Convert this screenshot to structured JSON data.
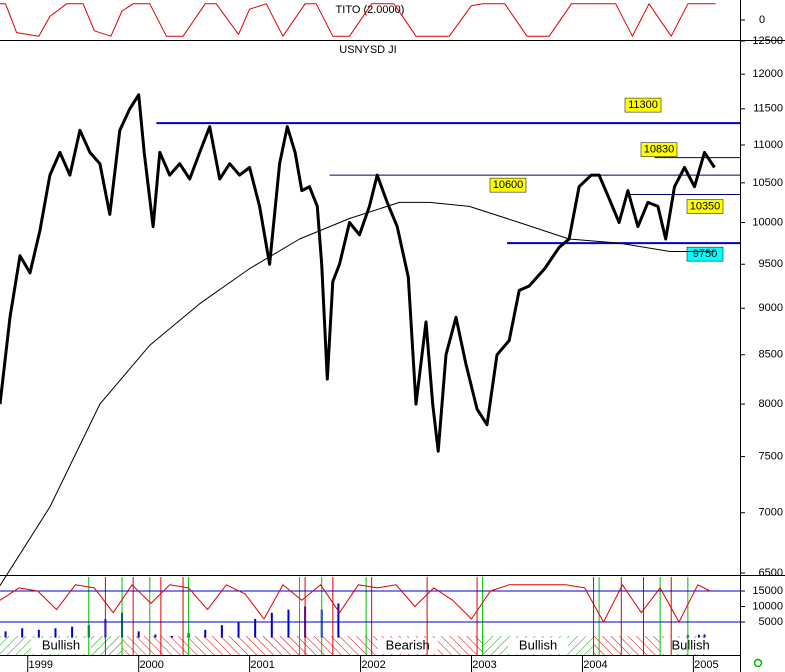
{
  "chart_data": [
    {
      "type": "line",
      "title": "TITO (2.0000)",
      "xlim": [
        1998.75,
        2005.42
      ],
      "ylim": [
        -1,
        1
      ],
      "yticks": [
        0
      ],
      "series": [
        {
          "color": "#e00000",
          "x": [
            1998.75,
            1998.8,
            1998.9,
            1999.1,
            1999.2,
            1999.35,
            1999.5,
            1999.6,
            1999.75,
            1999.85,
            1999.95,
            2000.1,
            2000.25,
            2000.4,
            2000.6,
            2000.7,
            2000.9,
            2001.0,
            2001.15,
            2001.3,
            2001.5,
            2001.6,
            2001.75,
            2001.9,
            2002.1,
            2002.3,
            2002.5,
            2002.6,
            2002.8,
            2003.0,
            2003.1,
            2003.3,
            2003.5,
            2003.7,
            2003.9,
            2004.1,
            2004.3,
            2004.45,
            2004.6,
            2004.8,
            2004.95,
            2005.1,
            2005.2
          ],
          "values": [
            0.9,
            0.9,
            -0.7,
            -0.9,
            0.2,
            0.9,
            0.9,
            -0.6,
            -0.9,
            0.5,
            0.9,
            0.9,
            -0.9,
            -0.9,
            0.9,
            0.9,
            -0.8,
            0.6,
            0.9,
            -0.9,
            0.9,
            0.9,
            -0.9,
            -0.9,
            0.9,
            0.9,
            -0.9,
            -0.9,
            -0.9,
            0.8,
            0.9,
            0.9,
            -0.9,
            -0.9,
            0.9,
            0.9,
            0.9,
            -0.9,
            0.9,
            -0.9,
            0.9,
            0.9,
            0.9
          ]
        }
      ]
    },
    {
      "type": "line",
      "title": "USNYSD JI",
      "log_scale": true,
      "xlim": [
        1998.75,
        2005.42
      ],
      "ylim": [
        6500,
        12500
      ],
      "yticks": [
        6500,
        7000,
        7500,
        8000,
        8500,
        9000,
        9500,
        10000,
        10500,
        11000,
        11500,
        12000,
        12500
      ],
      "series": [
        {
          "color": "#000000",
          "width": 3,
          "x": [
            1998.75,
            1998.84,
            1998.93,
            1999.02,
            1999.11,
            1999.2,
            1999.29,
            1999.38,
            1999.47,
            1999.56,
            1999.65,
            1999.74,
            1999.83,
            1999.92,
            2000.0,
            2000.05,
            2000.13,
            2000.19,
            2000.28,
            2000.37,
            2000.46,
            2000.55,
            2000.64,
            2000.73,
            2000.82,
            2000.91,
            2001.0,
            2001.09,
            2001.18,
            2001.27,
            2001.34,
            2001.41,
            2001.47,
            2001.54,
            2001.61,
            2001.65,
            2001.7,
            2001.75,
            2001.81,
            2001.9,
            2001.99,
            2002.08,
            2002.15,
            2002.24,
            2002.33,
            2002.43,
            2002.5,
            2002.59,
            2002.65,
            2002.7,
            2002.77,
            2002.86,
            2002.95,
            2003.05,
            2003.14,
            2003.23,
            2003.34,
            2003.43,
            2003.52,
            2003.66,
            2003.79,
            2003.88,
            2003.97,
            2004.08,
            2004.15,
            2004.24,
            2004.33,
            2004.41,
            2004.5,
            2004.59,
            2004.68,
            2004.75,
            2004.83,
            2004.92,
            2005.01,
            2005.1,
            2005.19
          ],
          "values": [
            8000,
            8900,
            9600,
            9400,
            9900,
            10600,
            10900,
            10600,
            11200,
            10900,
            10750,
            10100,
            11200,
            11500,
            11700,
            10900,
            9950,
            10900,
            10600,
            10750,
            10550,
            10900,
            11250,
            10550,
            10750,
            10600,
            10700,
            10200,
            9500,
            10750,
            11250,
            10900,
            10400,
            10450,
            10200,
            9500,
            8250,
            9300,
            9500,
            10000,
            9850,
            10200,
            10600,
            10250,
            9950,
            9350,
            8000,
            8850,
            8000,
            7550,
            8500,
            8900,
            8400,
            7950,
            7800,
            8500,
            8650,
            9200,
            9250,
            9450,
            9700,
            9800,
            10450,
            10600,
            10600,
            10300,
            10000,
            10400,
            9950,
            10250,
            10200,
            9800,
            10450,
            10700,
            10450,
            10900,
            10700
          ]
        },
        {
          "color": "#000000",
          "width": 1,
          "x": [
            1998.75,
            1999.2,
            1999.65,
            2000.1,
            2000.55,
            2001.0,
            2001.45,
            2001.9,
            2002.35,
            2002.62,
            2002.98,
            2003.43,
            2003.88,
            2004.33,
            2004.79,
            2005.19
          ],
          "values": [
            6400,
            7050,
            8000,
            8600,
            9050,
            9450,
            9800,
            10050,
            10250,
            10250,
            10200,
            10000,
            9800,
            9750,
            9650,
            9650
          ]
        }
      ],
      "levels": [
        {
          "value": 11300,
          "from": 2000.16,
          "bold": true,
          "label_color": "#ffff00"
        },
        {
          "value": 10830,
          "from": 2004.65,
          "bold": false,
          "label_color": "#ffff00"
        },
        {
          "value": 10600,
          "from": 2001.72,
          "bold": false,
          "label_color": "#ffff00"
        },
        {
          "value": 10350,
          "from": 2004.4,
          "bold": false,
          "label_color": "#ffff00"
        },
        {
          "value": 9750,
          "from": 2003.32,
          "bold": true,
          "label_color": "#00ffff"
        }
      ]
    },
    {
      "type": "line",
      "xlim": [
        1998.75,
        2005.42
      ],
      "ylim": [
        -5600,
        19500
      ],
      "yticks": [
        5000,
        10000,
        15000
      ],
      "xticks": [
        1999,
        2000,
        2001,
        2002,
        2003,
        2004,
        2005
      ],
      "levels": [
        15000,
        5000
      ],
      "series": [
        {
          "color": "#e00000",
          "x": [
            1998.75,
            1998.92,
            1999.09,
            1999.26,
            1999.43,
            1999.6,
            1999.77,
            1999.94,
            2000.11,
            2000.28,
            2000.45,
            2000.62,
            2000.79,
            2000.96,
            2001.13,
            2001.3,
            2001.47,
            2001.64,
            2001.81,
            2001.98,
            2002.15,
            2002.32,
            2002.49,
            2002.66,
            2002.83,
            2003.0,
            2003.17,
            2003.34,
            2003.51,
            2003.68,
            2003.85,
            2004.02,
            2004.19,
            2004.36,
            2004.53,
            2004.7,
            2004.87,
            2005.04,
            2005.15
          ],
          "values": [
            12000,
            16000,
            15000,
            9000,
            17000,
            16000,
            8000,
            17000,
            11000,
            17000,
            16000,
            9000,
            17000,
            14000,
            6000,
            17000,
            12000,
            17000,
            8000,
            17000,
            16000,
            17000,
            10000,
            16000,
            12000,
            6000,
            15000,
            17000,
            17000,
            17000,
            17000,
            16000,
            5000,
            17000,
            8000,
            16000,
            5000,
            17000,
            15000
          ]
        }
      ],
      "bars": {
        "color": "#0000cc",
        "x": [
          1998.8,
          1998.95,
          1999.1,
          1999.25,
          1999.4,
          1999.55,
          1999.7,
          1999.85,
          2000.0,
          2000.15,
          2000.3,
          2000.45,
          2000.6,
          2000.75,
          2000.9,
          2001.05,
          2001.2,
          2001.35,
          2001.5,
          2001.65,
          2001.8,
          2004.95,
          2005.05,
          2005.1
        ],
        "values": [
          2000,
          3000,
          2500,
          3000,
          3500,
          4000,
          6000,
          8000,
          2000,
          1000,
          500,
          1500,
          2500,
          4000,
          5000,
          6000,
          8000,
          9000,
          10000,
          9000,
          11000,
          800,
          900,
          1000
        ]
      },
      "buy_signals": [
        1999.55,
        1999.85,
        2000.1,
        2000.45,
        2001.45,
        2001.65,
        2002.05,
        2003.1,
        2004.15,
        2004.7,
        2004.95
      ],
      "sell_signals": [
        1999.7,
        1999.95,
        2000.2,
        2000.4,
        2001.5,
        2001.75,
        2002.1,
        2002.6,
        2003.05,
        2004.1,
        2004.35,
        2004.55,
        2004.8
      ],
      "bands": [
        {
          "label": "Bullish",
          "from": 1998.75,
          "to": 1999.85,
          "color": "green"
        },
        {
          "label": null,
          "from": 1999.85,
          "to": 2001.75,
          "color": "red"
        },
        {
          "label": "Bearish",
          "from": 2001.75,
          "to": 2003.1,
          "color": "red"
        },
        {
          "label": "Bullish",
          "from": 2003.1,
          "to": 2004.1,
          "color": "green"
        },
        {
          "label": null,
          "from": 2004.1,
          "to": 2004.8,
          "color": "red"
        },
        {
          "label": "Bullish",
          "from": 2004.8,
          "to": 2005.15,
          "color": "green"
        }
      ]
    }
  ]
}
